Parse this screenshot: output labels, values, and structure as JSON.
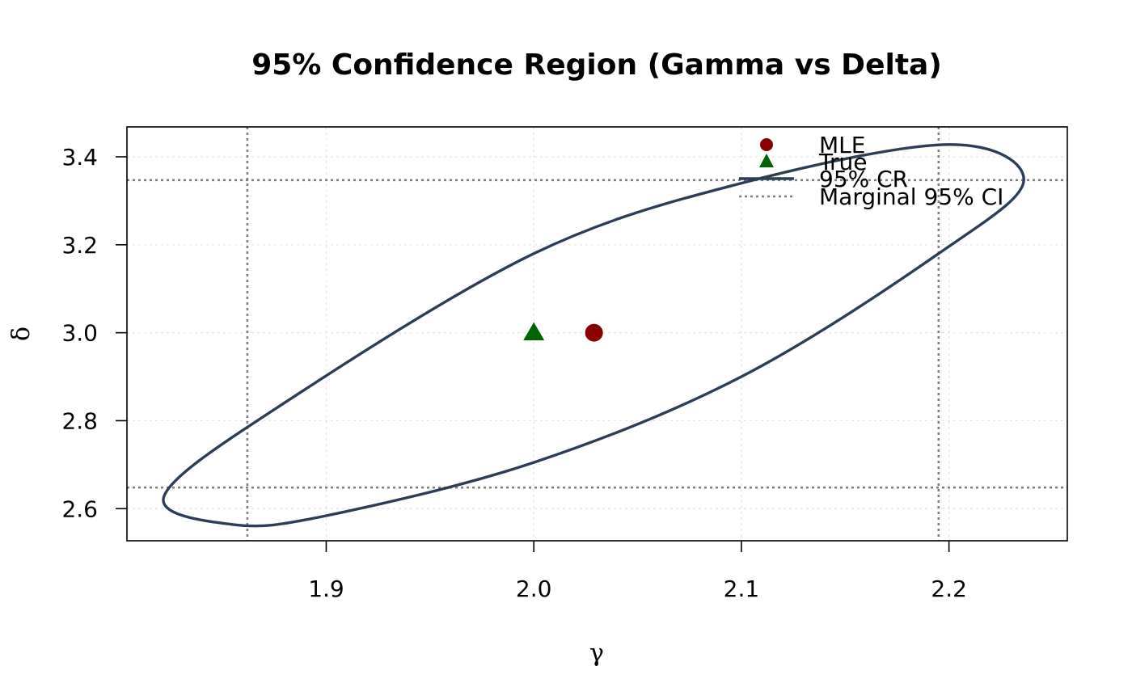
{
  "chart_data": {
    "type": "scatter",
    "title": "95% Confidence Region (Gamma vs Delta)",
    "xlabel": "γ",
    "ylabel": "δ",
    "xlim": [
      1.804,
      2.257
    ],
    "ylim": [
      2.527,
      3.468
    ],
    "x_ticks": [
      "1.9",
      "2.0",
      "2.1",
      "2.2"
    ],
    "y_ticks": [
      "2.6",
      "2.8",
      "3.0",
      "3.2",
      "3.4"
    ],
    "grid": true,
    "legend_position": "top-right",
    "legend": [
      "MLE",
      "True",
      "95% CR",
      "Marginal 95% CI"
    ],
    "mle": {
      "x": 2.029,
      "y": 3.0
    },
    "true": {
      "x": 2.0,
      "y": 3.0
    },
    "confidence_region": [
      {
        "x": 2.2,
        "y": 3.428
      },
      {
        "x": 2.236,
        "y": 3.345
      },
      {
        "x": 2.195,
        "y": 3.18
      },
      {
        "x": 2.1,
        "y": 2.9
      },
      {
        "x": 2.0,
        "y": 2.705
      },
      {
        "x": 1.9,
        "y": 2.584
      },
      {
        "x": 1.855,
        "y": 2.564
      },
      {
        "x": 1.822,
        "y": 2.63
      },
      {
        "x": 1.88,
        "y": 2.841
      },
      {
        "x": 2.0,
        "y": 3.18
      },
      {
        "x": 2.1,
        "y": 3.34
      }
    ],
    "marginal_ci": {
      "gamma": [
        1.862,
        2.195
      ],
      "delta": [
        2.648,
        3.347
      ]
    },
    "colors": {
      "mle": "#8B0000",
      "true": "#006400",
      "region": "#2C3E56",
      "marginal": "#7F7F7F",
      "grid": "#E3E3E3"
    }
  }
}
